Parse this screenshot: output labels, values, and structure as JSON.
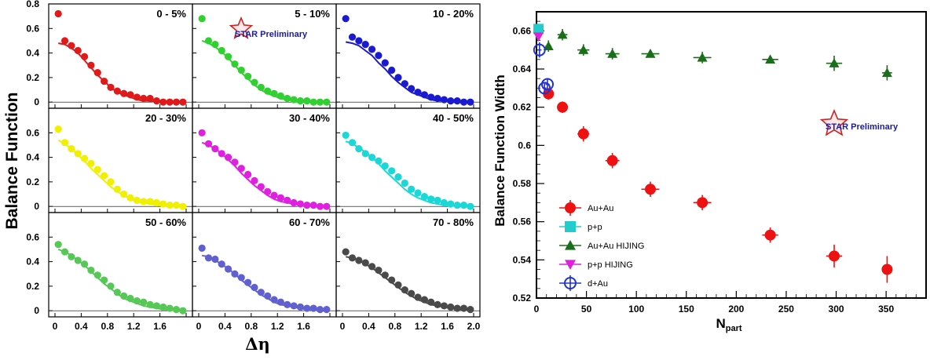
{
  "chart_data": [
    {
      "type": "scatter",
      "ylabel": "Balance Function",
      "xlabel": "Δη",
      "xlim": [
        0,
        2.0
      ],
      "ylim": [
        -0.05,
        0.8
      ],
      "x_ticks": [
        "0",
        "0.4",
        "0.8",
        "1.2",
        "1.6",
        "2.0"
      ],
      "y_ticks_top": [
        "0",
        "0.2",
        "0.4",
        "0.6",
        "0.8"
      ],
      "y_ticks_mid": [
        "0",
        "0.2",
        "0.4",
        "0.6"
      ],
      "y_ticks_bottom": [
        "0",
        "0.2",
        "0.4",
        "0.6"
      ],
      "star_label": "STAR Preliminary",
      "x": [
        0.05,
        0.15,
        0.25,
        0.35,
        0.45,
        0.55,
        0.65,
        0.75,
        0.85,
        0.95,
        1.05,
        1.15,
        1.25,
        1.35,
        1.45,
        1.55,
        1.65,
        1.75,
        1.85,
        1.95
      ],
      "panels": [
        {
          "title": "0 - 5%",
          "color": "#e01a1a",
          "values": [
            0.72,
            0.5,
            0.46,
            0.42,
            0.37,
            0.3,
            0.24,
            0.17,
            0.12,
            0.09,
            0.07,
            0.06,
            0.04,
            0.03,
            0.03,
            0.01,
            0.0,
            0.0,
            0.0,
            0.0
          ],
          "fit": [
            0.48,
            0.47,
            0.44,
            0.4,
            0.34,
            0.28,
            0.22,
            0.17,
            0.12,
            0.08,
            0.06,
            0.04,
            0.02,
            0.01,
            0.01,
            0.0,
            0.0,
            0.0,
            0.0,
            0.0
          ]
        },
        {
          "title": "5 - 10%",
          "color": "#2fd02f",
          "values": [
            0.68,
            0.5,
            0.47,
            0.42,
            0.37,
            0.31,
            0.26,
            0.21,
            0.16,
            0.12,
            0.09,
            0.07,
            0.05,
            0.03,
            0.02,
            0.01,
            0.01,
            0.0,
            0.0,
            0.0
          ],
          "fit": [
            0.5,
            0.48,
            0.45,
            0.41,
            0.36,
            0.3,
            0.24,
            0.19,
            0.14,
            0.1,
            0.07,
            0.05,
            0.03,
            0.02,
            0.01,
            0.01,
            0.0,
            0.0,
            0.0,
            0.0
          ]
        },
        {
          "title": "10 - 20%",
          "color": "#1a1ad0",
          "values": [
            0.68,
            0.53,
            0.5,
            0.47,
            0.43,
            0.38,
            0.32,
            0.26,
            0.2,
            0.15,
            0.11,
            0.08,
            0.06,
            0.04,
            0.03,
            0.02,
            0.01,
            0.01,
            0.0,
            0.0
          ],
          "fit": [
            0.49,
            0.48,
            0.46,
            0.42,
            0.38,
            0.32,
            0.27,
            0.21,
            0.16,
            0.12,
            0.08,
            0.06,
            0.04,
            0.02,
            0.01,
            0.01,
            0.0,
            0.0,
            0.0,
            0.0
          ]
        },
        {
          "title": "20 - 30%",
          "color": "#f0f000",
          "values": [
            0.63,
            0.52,
            0.47,
            0.43,
            0.39,
            0.35,
            0.3,
            0.25,
            0.2,
            0.14,
            0.1,
            0.07,
            0.05,
            0.04,
            0.04,
            0.03,
            0.02,
            0.01,
            0.01,
            0.0
          ],
          "fit": [
            0.54,
            0.51,
            0.47,
            0.42,
            0.37,
            0.31,
            0.26,
            0.21,
            0.16,
            0.12,
            0.09,
            0.06,
            0.04,
            0.03,
            0.02,
            0.01,
            0.01,
            0.0,
            0.0,
            0.0
          ]
        },
        {
          "title": "30 - 40%",
          "color": "#e020e0",
          "values": [
            0.6,
            0.51,
            0.47,
            0.43,
            0.4,
            0.36,
            0.31,
            0.26,
            0.21,
            0.16,
            0.12,
            0.09,
            0.07,
            0.05,
            0.03,
            0.02,
            0.01,
            0.01,
            0.0,
            0.0
          ],
          "fit": [
            0.52,
            0.5,
            0.47,
            0.43,
            0.38,
            0.33,
            0.27,
            0.22,
            0.17,
            0.13,
            0.09,
            0.06,
            0.04,
            0.03,
            0.02,
            0.01,
            0.01,
            0.0,
            0.0,
            0.0
          ]
        },
        {
          "title": "40 - 50%",
          "color": "#1ad8d8",
          "values": [
            0.58,
            0.52,
            0.47,
            0.43,
            0.4,
            0.37,
            0.33,
            0.29,
            0.24,
            0.19,
            0.14,
            0.11,
            0.08,
            0.06,
            0.05,
            0.03,
            0.02,
            0.01,
            0.01,
            0.0
          ],
          "fit": [
            0.53,
            0.51,
            0.48,
            0.44,
            0.4,
            0.35,
            0.29,
            0.24,
            0.19,
            0.14,
            0.1,
            0.07,
            0.05,
            0.03,
            0.02,
            0.01,
            0.01,
            0.0,
            0.0,
            0.0
          ]
        },
        {
          "title": "50 - 60%",
          "color": "#55c855",
          "values": [
            0.54,
            0.48,
            0.44,
            0.41,
            0.38,
            0.33,
            0.29,
            0.25,
            0.2,
            0.15,
            0.12,
            0.1,
            0.08,
            0.07,
            0.05,
            0.04,
            0.03,
            0.02,
            0.01,
            0.0
          ],
          "fit": [
            0.5,
            0.48,
            0.45,
            0.41,
            0.37,
            0.32,
            0.27,
            0.22,
            0.18,
            0.14,
            0.1,
            0.08,
            0.06,
            0.04,
            0.03,
            0.02,
            0.01,
            0.01,
            0.0,
            0.0
          ]
        },
        {
          "title": "60 - 70%",
          "color": "#6060d0",
          "values": [
            0.51,
            0.43,
            0.42,
            0.38,
            0.34,
            0.3,
            0.27,
            0.23,
            0.19,
            0.15,
            0.12,
            0.09,
            0.07,
            0.05,
            0.04,
            0.03,
            0.02,
            0.02,
            0.01,
            0.01
          ],
          "fit": [
            0.45,
            0.44,
            0.41,
            0.38,
            0.34,
            0.3,
            0.25,
            0.21,
            0.17,
            0.13,
            0.1,
            0.07,
            0.05,
            0.04,
            0.03,
            0.02,
            0.01,
            0.01,
            0.0,
            0.0
          ]
        },
        {
          "title": "70 - 80%",
          "color": "#4a4a4a",
          "values": [
            0.48,
            0.43,
            0.41,
            0.39,
            0.36,
            0.33,
            0.29,
            0.25,
            0.21,
            0.17,
            0.14,
            0.11,
            0.09,
            0.07,
            0.05,
            0.04,
            0.03,
            0.02,
            0.02,
            0.01
          ],
          "fit": [
            0.44,
            0.43,
            0.41,
            0.38,
            0.35,
            0.31,
            0.27,
            0.23,
            0.19,
            0.15,
            0.12,
            0.09,
            0.07,
            0.05,
            0.04,
            0.03,
            0.02,
            0.01,
            0.01,
            0.0
          ]
        }
      ]
    },
    {
      "type": "scatter",
      "xlabel": "N",
      "xlabel_sub": "part",
      "ylabel": "Balance Function Width",
      "xlim": [
        0,
        390
      ],
      "ylim": [
        0.52,
        0.67
      ],
      "x_ticks": [
        0,
        50,
        100,
        150,
        200,
        250,
        300,
        350
      ],
      "y_ticks": [
        "0.52",
        "0.54",
        "0.56",
        "0.58",
        "0.6",
        "0.62",
        "0.64",
        "0.66"
      ],
      "star_label": "STAR Preliminary",
      "legend": [
        "Au+Au",
        "p+p",
        "Au+Au HIJING",
        "p+p HIJING",
        "d+Au"
      ],
      "series": [
        {
          "name": "Au+Au",
          "marker": "circle",
          "color": "#ee1111",
          "points": [
            [
              12,
              0.627,
              3,
              0.003
            ],
            [
              26,
              0.62,
              5,
              0.003
            ],
            [
              47,
              0.606,
              6,
              0.004
            ],
            [
              76,
              0.592,
              7,
              0.004
            ],
            [
              114,
              0.577,
              9,
              0.004
            ],
            [
              166,
              0.57,
              9,
              0.004
            ],
            [
              234,
              0.553,
              8,
              0.004
            ],
            [
              298,
              0.542,
              8,
              0.006
            ],
            [
              351,
              0.535,
              5,
              0.007
            ]
          ]
        },
        {
          "name": "p+p",
          "marker": "square",
          "color": "#22cccc",
          "points": [
            [
              2,
              0.661,
              0,
              0.002
            ]
          ]
        },
        {
          "name": "Au+Au HIJING",
          "marker": "triangle",
          "color": "#1a6e1a",
          "points": [
            [
              12,
              0.652,
              3,
              0.003
            ],
            [
              26,
              0.658,
              5,
              0.003
            ],
            [
              47,
              0.65,
              6,
              0.003
            ],
            [
              76,
              0.648,
              7,
              0.003
            ],
            [
              114,
              0.648,
              9,
              0.002
            ],
            [
              166,
              0.646,
              9,
              0.003
            ],
            [
              234,
              0.645,
              8,
              0.002
            ],
            [
              298,
              0.643,
              8,
              0.004
            ],
            [
              351,
              0.638,
              5,
              0.004
            ]
          ]
        },
        {
          "name": "p+p HIJING",
          "marker": "triangle-down",
          "color": "#dd22dd",
          "points": [
            [
              2,
              0.657,
              0,
              0.002
            ]
          ]
        },
        {
          "name": "d+Au",
          "marker": "open-circle",
          "color": "#2233cc",
          "points": [
            [
              3,
              0.65,
              2,
              0.004
            ],
            [
              8,
              0.63,
              2,
              0.003
            ],
            [
              11,
              0.632,
              2,
              0.003
            ]
          ]
        }
      ]
    }
  ]
}
